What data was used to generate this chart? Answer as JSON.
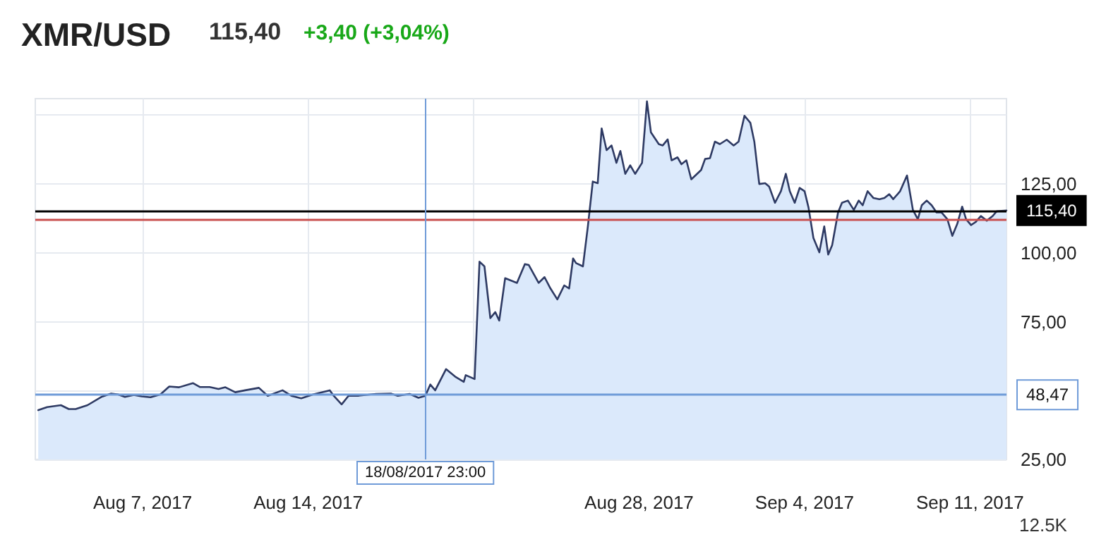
{
  "chart_data": {
    "type": "area",
    "title": "XMR/USD",
    "subtitle": "115,40",
    "annotations": [
      "+3,40 (+3,04%)",
      "12.5K"
    ],
    "x": [
      "2017-08-02T14:00",
      "2017-08-02T23:00",
      "2017-08-03T13:00",
      "2017-08-03T21:00",
      "2017-08-04T04:00",
      "2017-08-04T16:00",
      "2017-08-05T06:00",
      "2017-08-05T16:00",
      "2017-08-05T23:00",
      "2017-08-06T06:00",
      "2017-08-06T15:00",
      "2017-08-06T23:00",
      "2017-08-07T08:00",
      "2017-08-07T18:00",
      "2017-08-08T03:00",
      "2017-08-08T13:00",
      "2017-08-09T03:00",
      "2017-08-09T10:00",
      "2017-08-09T20:00",
      "2017-08-10T05:00",
      "2017-08-10T12:00",
      "2017-08-10T22:00",
      "2017-08-11T08:00",
      "2017-08-11T22:00",
      "2017-08-12T07:00",
      "2017-08-12T22:00",
      "2017-08-13T07:00",
      "2017-08-13T17:00",
      "2017-08-14T05:00",
      "2017-08-14T22:00",
      "2017-08-15T02:00",
      "2017-08-15T10:00",
      "2017-08-15T17:00",
      "2017-08-16T02:00",
      "2017-08-16T21:00",
      "2017-08-17T12:00",
      "2017-08-17T19:00",
      "2017-08-18T07:00",
      "2017-08-18T16:00",
      "2017-08-18T23:00",
      "2017-08-19T04:00",
      "2017-08-19T09:00",
      "2017-08-19T20:00",
      "2017-08-20T06:00",
      "2017-08-20T14:00",
      "2017-08-20T16:00",
      "2017-08-21T01:00",
      "2017-08-21T06:00",
      "2017-08-21T11:00",
      "2017-08-21T17:00",
      "2017-08-21T22:00",
      "2017-08-22T02:00",
      "2017-08-22T08:00",
      "2017-08-22T20:00",
      "2017-08-23T04:00",
      "2017-08-23T08:00",
      "2017-08-23T18:00",
      "2017-08-24T00:00",
      "2017-08-24T06:00",
      "2017-08-24T13:00",
      "2017-08-24T20:00",
      "2017-08-25T01:00",
      "2017-08-25T05:00",
      "2017-08-25T08:00",
      "2017-08-25T15:00",
      "2017-08-25T20:00",
      "2017-08-26T01:00",
      "2017-08-26T06:00",
      "2017-08-26T10:00",
      "2017-08-26T15:00",
      "2017-08-26T20:00",
      "2017-08-27T01:00",
      "2017-08-27T05:00",
      "2017-08-27T10:00",
      "2017-08-27T15:00",
      "2017-08-27T20:00",
      "2017-08-28T03:00",
      "2017-08-28T08:00",
      "2017-08-28T12:00",
      "2017-08-28T20:00",
      "2017-08-29T00:00",
      "2017-08-29T05:00",
      "2017-08-29T09:00",
      "2017-08-29T15:00",
      "2017-08-29T19:00",
      "2017-08-30T00:00",
      "2017-08-30T05:00",
      "2017-08-30T15:00",
      "2017-08-30T19:00",
      "2017-08-31T00:00",
      "2017-08-31T05:00",
      "2017-08-31T10:00",
      "2017-08-31T17:00",
      "2017-09-01T00:00",
      "2017-09-01T05:00",
      "2017-09-01T11:00",
      "2017-09-01T17:00",
      "2017-09-01T21:00",
      "2017-09-02T02:00",
      "2017-09-02T08:00",
      "2017-09-02T12:00",
      "2017-09-02T18:00",
      "2017-09-03T00:00",
      "2017-09-03T05:00",
      "2017-09-03T09:00",
      "2017-09-03T14:00",
      "2017-09-03T19:00",
      "2017-09-04T00:00",
      "2017-09-04T04:00",
      "2017-09-04T09:00",
      "2017-09-04T15:00",
      "2017-09-04T20:00",
      "2017-09-05T00:00",
      "2017-09-05T04:00",
      "2017-09-05T10:00",
      "2017-09-05T14:00",
      "2017-09-05T20:00",
      "2017-09-06T02:00",
      "2017-09-06T07:00",
      "2017-09-06T11:00",
      "2017-09-06T16:00",
      "2017-09-06T22:00",
      "2017-09-07T04:00",
      "2017-09-07T09:00",
      "2017-09-07T14:00",
      "2017-09-07T18:00",
      "2017-09-08T01:00",
      "2017-09-08T08:00",
      "2017-09-08T14:00",
      "2017-09-08T19:00",
      "2017-09-08T23:00",
      "2017-09-09T04:00",
      "2017-09-09T09:00",
      "2017-09-09T14:00",
      "2017-09-09T19:00",
      "2017-09-10T01:00",
      "2017-09-10T06:00",
      "2017-09-10T11:00",
      "2017-09-10T16:00",
      "2017-09-10T20:00",
      "2017-09-11T01:00",
      "2017-09-11T06:00",
      "2017-09-11T11:00",
      "2017-09-11T17:00",
      "2017-09-11T23:00",
      "2017-09-12T03:00",
      "2017-09-12T13:00"
    ],
    "series": [
      {
        "color": "#2e3a63",
        "values": [
          42.9,
          44.0,
          44.7,
          43.3,
          43.3,
          44.7,
          47.7,
          48.9,
          48.6,
          47.7,
          48.4,
          47.9,
          47.6,
          48.6,
          51.5,
          51.2,
          52.7,
          51.3,
          51.3,
          50.6,
          51.2,
          49.4,
          50.1,
          51.0,
          48.1,
          50.1,
          48.1,
          47.2,
          48.6,
          50.1,
          48.1,
          45.0,
          48.1,
          48.1,
          48.8,
          48.9,
          48.1,
          48.8,
          47.4,
          48.1,
          52.2,
          50.1,
          57.8,
          54.9,
          53.2,
          55.6,
          54.2,
          96.8,
          95.1,
          76.3,
          78.5,
          75.4,
          90.8,
          89.1,
          95.9,
          95.6,
          89.1,
          91.2,
          87.1,
          83.1,
          88.2,
          87.1,
          98.0,
          96.3,
          95.1,
          109.6,
          125.9,
          125.3,
          145.2,
          137.3,
          139.0,
          132.7,
          137.0,
          128.7,
          131.8,
          128.7,
          132.7,
          155,
          143.8,
          139.5,
          139.0,
          141.2,
          133.6,
          134.7,
          132.2,
          133.6,
          126.7,
          130.1,
          134.1,
          134.4,
          140.4,
          139.5,
          141.1,
          139.0,
          140.4,
          149.8,
          147.2,
          140.4,
          125.0,
          125.3,
          124.1,
          118.2,
          122.4,
          128.7,
          122.4,
          118.2,
          123.6,
          122.4,
          116.5,
          105.4,
          100.2,
          109.6,
          99.4,
          102.8,
          114.7,
          118.2,
          119.0,
          115.6,
          119.0,
          117.3,
          122.4,
          119.9,
          119.5,
          119.9,
          121.3,
          119.5,
          122.4,
          128.1,
          115.6,
          112.2,
          117.3,
          119.0,
          117.3,
          114.7,
          114.7,
          112.2,
          106.2,
          110.5,
          116.8,
          112.2,
          110.1,
          111.3,
          113.4,
          111.7,
          113.4,
          115.1,
          115.4
        ]
      }
    ],
    "xlim": [
      "2017-08-02T11:00",
      "2017-09-12T13:00"
    ],
    "xticks": [
      {
        "value": "2017-08-07",
        "label": "Aug 7, 2017"
      },
      {
        "value": "2017-08-14",
        "label": "Aug 14, 2017"
      },
      {
        "value": "2017-08-21",
        "label": null
      },
      {
        "value": "2017-08-28",
        "label": "Aug 28, 2017"
      },
      {
        "value": "2017-09-04",
        "label": "Sep 4, 2017"
      },
      {
        "value": "2017-09-11",
        "label": "Sep 11, 2017"
      }
    ],
    "ylim": [
      25,
      156
    ],
    "yticks": [
      {
        "value": 25,
        "label": "25,00"
      },
      {
        "value": 50,
        "label": null
      },
      {
        "value": 75,
        "label": "75,00"
      },
      {
        "value": 100,
        "label": "100,00"
      },
      {
        "value": 125,
        "label": "125,00"
      },
      {
        "value": 150,
        "label": null
      }
    ],
    "ref_lines": [
      {
        "axis": "y",
        "value": 115.4,
        "label": "115,40",
        "color": "#000000"
      },
      {
        "axis": "y",
        "value": 112,
        "color": "#c9504f"
      },
      {
        "axis": "y",
        "value": 48.47,
        "label": "48,47",
        "color": "#6f9bd8"
      },
      {
        "axis": "x",
        "value": "2017-08-18T23:00",
        "label": "18/08/2017 23:00",
        "color": "#6f9bd8"
      }
    ],
    "grid": true,
    "marker": "none",
    "line_style": "solid"
  }
}
